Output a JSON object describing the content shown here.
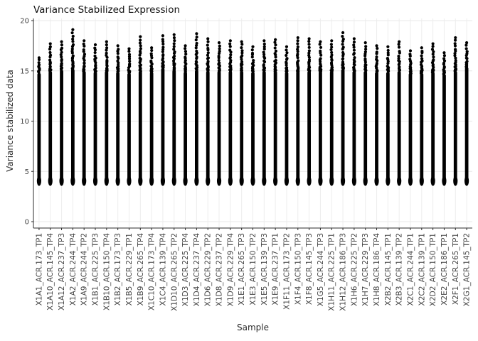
{
  "chart_data": {
    "type": "scatter",
    "title": "Variance Stabilized Expression",
    "xlabel": "Sample",
    "ylabel": "Variance stabilized data",
    "ylim": [
      0,
      20
    ],
    "y_ticks": [
      0,
      5,
      10,
      15,
      20
    ],
    "grid": true,
    "point_color": "#000000",
    "points_min": 3.7,
    "description": "Per-sample vertical columns of variance-stabilized expression values; dense from ~3.7 to ~15 with sparse high-expression outlier points up to each sample maximum.",
    "samples": [
      {
        "label": "X1A1_ACR.173_TP1",
        "dense_top": 14.8,
        "max": 16.3
      },
      {
        "label": "X1A10_ACR.145_TP4",
        "dense_top": 15.0,
        "max": 17.7
      },
      {
        "label": "X1A12_ACR.237_TP3",
        "dense_top": 15.1,
        "max": 17.9
      },
      {
        "label": "X1A2_ACR.244_TP4",
        "dense_top": 15.2,
        "max": 19.1
      },
      {
        "label": "X1A9_ACR.244_TP2",
        "dense_top": 15.0,
        "max": 18.0
      },
      {
        "label": "X1B1_ACR.225_TP3",
        "dense_top": 14.9,
        "max": 17.6
      },
      {
        "label": "X1B10_ACR.150_TP4",
        "dense_top": 15.0,
        "max": 17.9
      },
      {
        "label": "X1B2_ACR.173_TP3",
        "dense_top": 14.9,
        "max": 17.5
      },
      {
        "label": "X1B5_ACR.229_TP1",
        "dense_top": 14.8,
        "max": 17.2
      },
      {
        "label": "X1B9_ACR.265_TP4",
        "dense_top": 15.0,
        "max": 18.4
      },
      {
        "label": "X1C10_ACR.173_TP4",
        "dense_top": 14.9,
        "max": 17.3
      },
      {
        "label": "X1C4_ACR.139_TP4",
        "dense_top": 15.3,
        "max": 18.5
      },
      {
        "label": "X1D10_ACR.265_TP2",
        "dense_top": 15.1,
        "max": 18.6
      },
      {
        "label": "X1D3_ACR.225_TP4",
        "dense_top": 14.9,
        "max": 17.5
      },
      {
        "label": "X1D4_ACR.237_TP4",
        "dense_top": 15.1,
        "max": 18.7
      },
      {
        "label": "X1D6_ACR.229_TP2",
        "dense_top": 15.0,
        "max": 18.2
      },
      {
        "label": "X1D8_ACR.237_TP2",
        "dense_top": 15.0,
        "max": 17.8
      },
      {
        "label": "X1D9_ACR.229_TP4",
        "dense_top": 15.0,
        "max": 18.0
      },
      {
        "label": "X1E1_ACR.265_TP3",
        "dense_top": 15.0,
        "max": 17.9
      },
      {
        "label": "X1E3_ACR.150_TP2",
        "dense_top": 14.9,
        "max": 17.4
      },
      {
        "label": "X1E5_ACR.139_TP3",
        "dense_top": 15.0,
        "max": 18.0
      },
      {
        "label": "X1E9_ACR.237_TP1",
        "dense_top": 15.0,
        "max": 18.1
      },
      {
        "label": "X1F11_ACR.173_TP2",
        "dense_top": 14.9,
        "max": 17.4
      },
      {
        "label": "X1F4_ACR.150_TP3",
        "dense_top": 15.0,
        "max": 18.3
      },
      {
        "label": "X1F8_ACR.145_TP3",
        "dense_top": 15.0,
        "max": 18.2
      },
      {
        "label": "X1G5_ACR.244_TP3",
        "dense_top": 15.0,
        "max": 17.9
      },
      {
        "label": "X1H11_ACR.225_TP1",
        "dense_top": 15.0,
        "max": 18.0
      },
      {
        "label": "X1H12_ACR.186_TP3",
        "dense_top": 15.2,
        "max": 18.8
      },
      {
        "label": "X1H6_ACR.225_TP2",
        "dense_top": 15.0,
        "max": 18.2
      },
      {
        "label": "X1H7_ACR.229_TP3",
        "dense_top": 15.0,
        "max": 17.8
      },
      {
        "label": "X1H8_ACR.186_TP4",
        "dense_top": 14.9,
        "max": 17.5
      },
      {
        "label": "X2B2_ACR.145_TP1",
        "dense_top": 14.9,
        "max": 17.4
      },
      {
        "label": "X2B3_ACR.139_TP2",
        "dense_top": 15.0,
        "max": 17.9
      },
      {
        "label": "X2C1_ACR.244_TP1",
        "dense_top": 14.8,
        "max": 17.0
      },
      {
        "label": "X2C2_ACR.139_TP1",
        "dense_top": 14.8,
        "max": 17.3
      },
      {
        "label": "X2D2_ACR.150_TP1",
        "dense_top": 14.9,
        "max": 17.7
      },
      {
        "label": "X2E2_ACR.186_TP1",
        "dense_top": 14.7,
        "max": 16.8
      },
      {
        "label": "X2F1_ACR.265_TP1",
        "dense_top": 15.0,
        "max": 18.3
      },
      {
        "label": "X2G1_ACR.145_TP2",
        "dense_top": 15.4,
        "max": 17.8
      }
    ]
  }
}
